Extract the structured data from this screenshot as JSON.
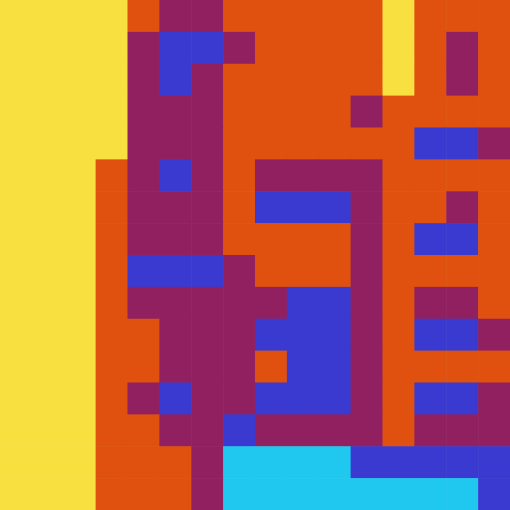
{
  "chart_data": {
    "type": "heatmap",
    "tick_labels": false,
    "colors": [
      "#20c8f0",
      "#3a3ad0",
      "#902060",
      "#e0500e",
      "#f8e040"
    ],
    "cells": [
      [
        4,
        4,
        4,
        4,
        3,
        2,
        2,
        3,
        3,
        3,
        3,
        3,
        4,
        3,
        3,
        3
      ],
      [
        4,
        4,
        4,
        4,
        2,
        1,
        1,
        2,
        3,
        3,
        3,
        3,
        4,
        3,
        2,
        3
      ],
      [
        4,
        4,
        4,
        4,
        2,
        1,
        2,
        3,
        3,
        3,
        3,
        3,
        4,
        3,
        2,
        3
      ],
      [
        4,
        4,
        4,
        4,
        2,
        2,
        2,
        3,
        3,
        3,
        3,
        2,
        3,
        3,
        3,
        3
      ],
      [
        4,
        4,
        4,
        4,
        2,
        2,
        2,
        3,
        3,
        3,
        3,
        3,
        3,
        1,
        1,
        2
      ],
      [
        4,
        4,
        4,
        3,
        2,
        1,
        2,
        3,
        2,
        2,
        2,
        2,
        3,
        3,
        3,
        3
      ],
      [
        4,
        4,
        4,
        3,
        2,
        2,
        2,
        3,
        1,
        1,
        1,
        2,
        3,
        3,
        2,
        3
      ],
      [
        4,
        4,
        4,
        3,
        2,
        2,
        2,
        3,
        3,
        3,
        3,
        2,
        3,
        1,
        1,
        3
      ],
      [
        4,
        4,
        4,
        3,
        1,
        1,
        1,
        2,
        3,
        3,
        3,
        2,
        3,
        3,
        3,
        3
      ],
      [
        4,
        4,
        4,
        3,
        2,
        2,
        2,
        2,
        2,
        1,
        1,
        2,
        3,
        2,
        2,
        3
      ],
      [
        4,
        4,
        4,
        3,
        3,
        2,
        2,
        2,
        1,
        1,
        1,
        2,
        3,
        1,
        1,
        2
      ],
      [
        4,
        4,
        4,
        3,
        3,
        2,
        2,
        2,
        3,
        1,
        1,
        2,
        3,
        3,
        3,
        3
      ],
      [
        4,
        4,
        4,
        3,
        2,
        1,
        2,
        2,
        1,
        1,
        1,
        2,
        3,
        1,
        1,
        2
      ],
      [
        4,
        4,
        4,
        3,
        3,
        2,
        2,
        1,
        2,
        2,
        2,
        2,
        3,
        2,
        2,
        2
      ],
      [
        4,
        4,
        4,
        3,
        3,
        3,
        2,
        0,
        0,
        0,
        0,
        1,
        1,
        1,
        1,
        1
      ],
      [
        4,
        4,
        4,
        3,
        3,
        3,
        2,
        0,
        0,
        0,
        0,
        0,
        0,
        0,
        0,
        1
      ]
    ]
  }
}
